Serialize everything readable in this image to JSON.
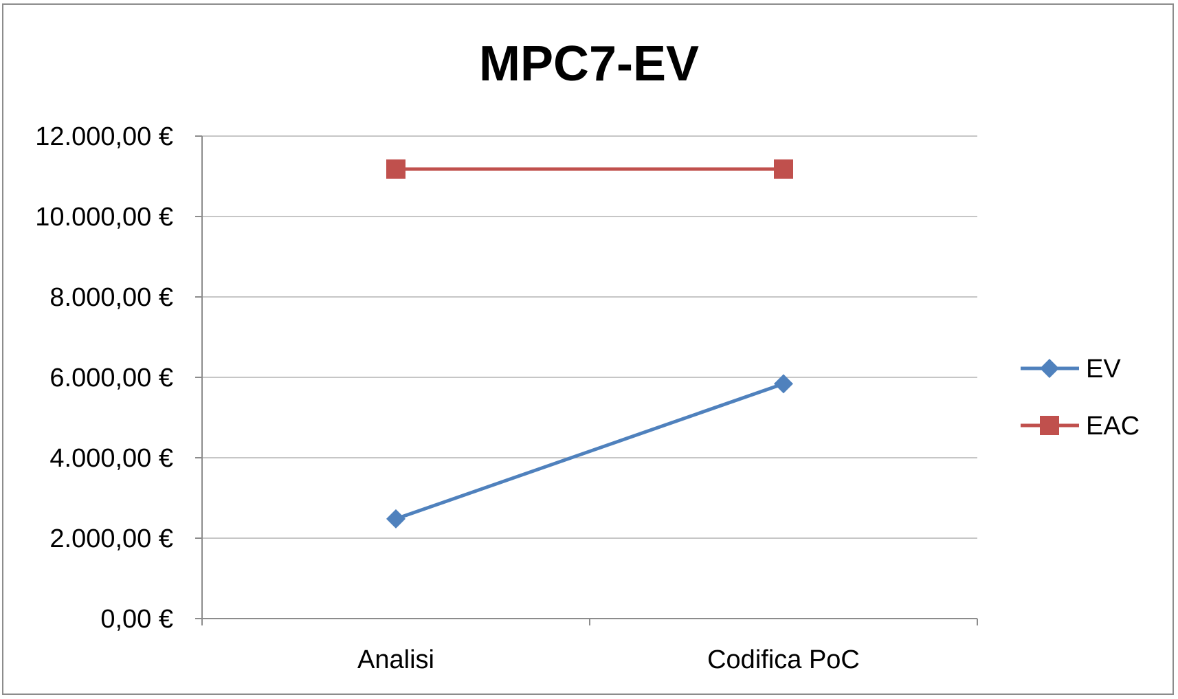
{
  "chart_data": {
    "type": "line",
    "title": "MPC7-EV",
    "xlabel": "",
    "ylabel": "",
    "categories": [
      "Analisi",
      "Codifica PoC"
    ],
    "ylim": [
      0,
      12000
    ],
    "y_ticks": [
      0,
      2000,
      4000,
      6000,
      8000,
      10000,
      12000
    ],
    "y_tick_labels": [
      "0,00 €",
      "2.000,00 €",
      "4.000,00 €",
      "6.000,00 €",
      "8.000,00 €",
      "10.000,00 €",
      "12.000,00 €"
    ],
    "grid": true,
    "legend_position": "right",
    "series": [
      {
        "name": "EV",
        "values": [
          2480,
          5840
        ],
        "color": "#4f81bd",
        "marker": "diamond"
      },
      {
        "name": "EAC",
        "values": [
          11180,
          11180
        ],
        "color": "#c0504d",
        "marker": "square"
      }
    ]
  }
}
